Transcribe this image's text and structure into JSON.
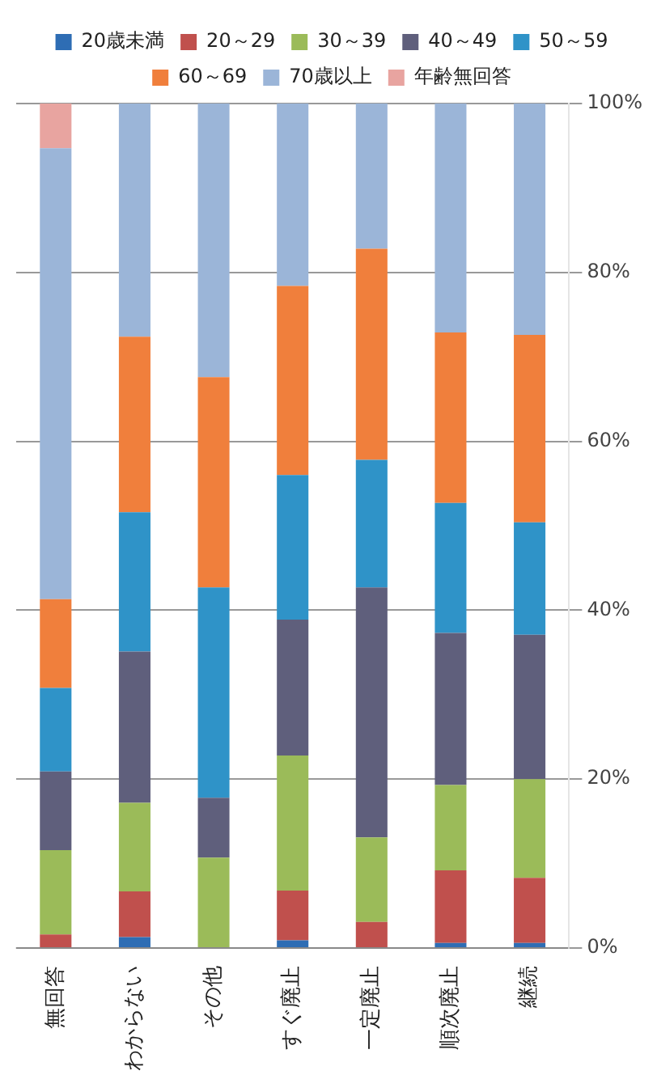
{
  "chart_data": {
    "type": "bar",
    "stacked": true,
    "categories": [
      "無回答",
      "わからない",
      "その他",
      "すぐ廃止",
      "一定廃止",
      "順次廃止",
      "継続"
    ],
    "series": [
      {
        "name": "20歳未満",
        "color": "#2e6db4",
        "values": [
          0,
          1.3,
          0,
          0.9,
          0,
          0.6,
          0.6
        ]
      },
      {
        "name": "20～29",
        "color": "#c0504d",
        "values": [
          1.6,
          5.4,
          0,
          5.9,
          3.1,
          8.6,
          7.7
        ]
      },
      {
        "name": "30～39",
        "color": "#9bbb59",
        "values": [
          10,
          10.5,
          10.7,
          16,
          10,
          10.1,
          11.7
        ]
      },
      {
        "name": "40～49",
        "color": "#5f5f7c",
        "values": [
          9.3,
          17.9,
          7.1,
          16.1,
          29.6,
          18,
          17.1
        ]
      },
      {
        "name": "50～59",
        "color": "#2f93c8",
        "values": [
          9.9,
          16.5,
          24.9,
          17.1,
          15.1,
          15.4,
          13.3
        ]
      },
      {
        "name": "60～69",
        "color": "#f07f3c",
        "values": [
          10.5,
          20.8,
          24.9,
          22.4,
          25,
          20.2,
          22.2
        ]
      },
      {
        "name": "70歳以上",
        "color": "#9bb5d8",
        "values": [
          53.4,
          27.6,
          32.4,
          21.6,
          17.2,
          27.1,
          27.4
        ]
      },
      {
        "name": "年齢無回答",
        "color": "#e8a4a0",
        "values": [
          5.3,
          0,
          0,
          0,
          0,
          0,
          0
        ]
      }
    ],
    "ylim": [
      0,
      100
    ],
    "yticks": [
      {
        "value": 0,
        "label": "0%"
      },
      {
        "value": 20,
        "label": "20%"
      },
      {
        "value": 40,
        "label": "40%"
      },
      {
        "value": 60,
        "label": "60%"
      },
      {
        "value": 80,
        "label": "80%"
      },
      {
        "value": 100,
        "label": "100%"
      }
    ],
    "grid": "y",
    "legend": "top"
  }
}
